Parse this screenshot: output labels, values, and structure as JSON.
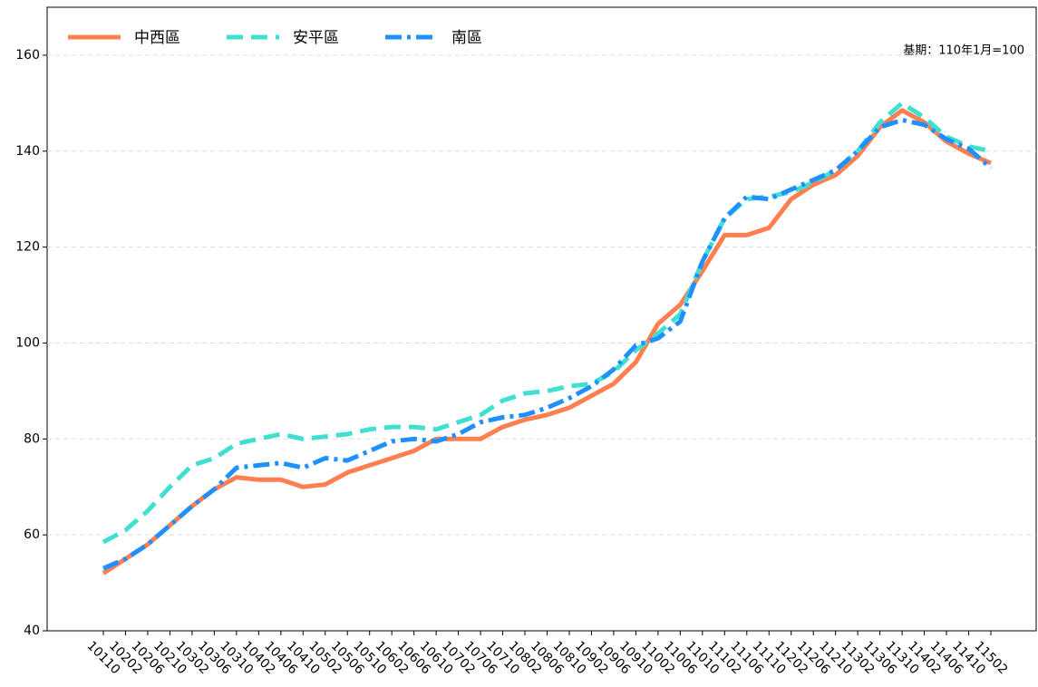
{
  "chart_data": {
    "type": "line",
    "annotation": "基期：110年1月=100",
    "categories": [
      "10110",
      "10202",
      "10206",
      "10210",
      "10302",
      "10306",
      "10310",
      "10402",
      "10406",
      "10410",
      "10502",
      "10506",
      "10510",
      "10602",
      "10606",
      "10610",
      "10702",
      "10706",
      "10710",
      "10802",
      "10806",
      "10810",
      "10902",
      "10906",
      "10910",
      "11002",
      "11006",
      "11010",
      "11102",
      "11106",
      "11110",
      "11202",
      "11206",
      "11210",
      "11302",
      "11306",
      "11310",
      "11402",
      "11406",
      "11410",
      "11502"
    ],
    "series": [
      {
        "name": "中西區",
        "color": "#ff7f50",
        "style": "solid",
        "values": [
          52,
          55,
          58,
          62,
          66,
          69.5,
          72,
          71.5,
          71.5,
          70,
          70.5,
          73,
          74.5,
          76,
          77.5,
          80,
          80,
          80,
          82.5,
          84,
          85,
          86.5,
          89,
          91.5,
          96,
          104,
          108,
          115,
          122.5,
          122.5,
          124,
          130,
          133,
          135,
          139,
          145,
          148.5,
          146,
          142,
          139.5,
          137.5
        ]
      },
      {
        "name": "安平區",
        "color": "#40e0d0",
        "style": "dashed",
        "values": [
          58.5,
          61,
          65,
          70,
          74.5,
          76,
          79,
          80,
          81,
          80,
          80.5,
          81,
          82,
          82.5,
          82.5,
          82,
          83.5,
          85,
          88,
          89.5,
          90,
          91,
          91.5,
          94,
          98.5,
          102,
          106,
          117,
          126,
          130,
          130.5,
          131.5,
          133.5,
          136,
          140,
          146,
          150,
          147,
          143,
          141,
          140
        ]
      },
      {
        "name": "南區",
        "color": "#1e90ff",
        "style": "dashdot",
        "values": [
          53,
          55,
          58,
          62,
          66,
          69.5,
          74,
          74.5,
          75,
          74,
          76,
          75.5,
          77.5,
          79.5,
          80,
          79.5,
          81,
          83.5,
          84.5,
          85,
          86.5,
          88.5,
          91,
          94.5,
          99.5,
          101,
          104.5,
          117,
          126,
          130.5,
          130,
          132,
          134,
          136,
          140,
          145,
          146.5,
          145.5,
          142.5,
          140.5,
          136.5
        ]
      }
    ],
    "ylim": [
      40,
      170
    ],
    "yticks": [
      40,
      60,
      80,
      100,
      120,
      140,
      160
    ],
    "grid": true,
    "legend": "upper left"
  }
}
